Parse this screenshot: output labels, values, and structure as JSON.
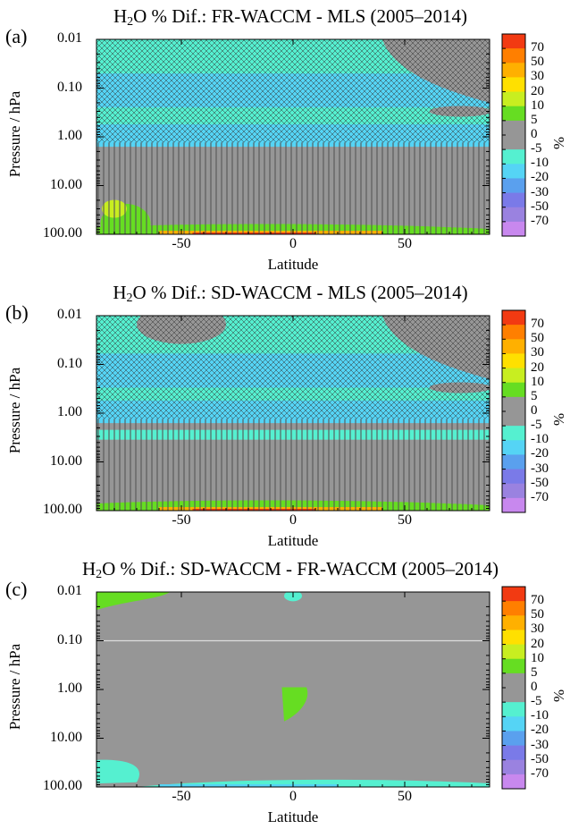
{
  "chart_data": [
    {
      "type": "heatmap",
      "panel_label": "(a)",
      "title_pre": "H",
      "title_sub": "2",
      "title_post": "O % Dif.: FR-WACCM - MLS (2005–2014)",
      "xlabel": "Latitude",
      "ylabel": "Pressure / hPa",
      "y_scale": "log",
      "ylim": [
        100,
        0.01
      ],
      "xlim": [
        -88,
        88
      ],
      "x_ticks": [
        -50,
        0,
        50
      ],
      "y_ticks": [
        "0.01",
        "0.10",
        "1.00",
        "10.00",
        "100.00"
      ],
      "colorbar_levels": [
        "70",
        "50",
        "30",
        "20",
        "10",
        "5",
        "0",
        "-5",
        "-10",
        "-20",
        "-30",
        "-50",
        "-70"
      ],
      "colorbar_unit": "%",
      "hatching": "significance crosses/hatch over most of domain"
    },
    {
      "type": "heatmap",
      "panel_label": "(b)",
      "title_pre": "H",
      "title_sub": "2",
      "title_post": "O % Dif.: SD-WACCM - MLS (2005–2014)",
      "xlabel": "Latitude",
      "ylabel": "Pressure / hPa",
      "y_scale": "log",
      "ylim": [
        100,
        0.01
      ],
      "xlim": [
        -88,
        88
      ],
      "x_ticks": [
        -50,
        0,
        50
      ],
      "y_ticks": [
        "0.01",
        "0.10",
        "1.00",
        "10.00",
        "100.00"
      ],
      "colorbar_levels": [
        "70",
        "50",
        "30",
        "20",
        "10",
        "5",
        "0",
        "-5",
        "-10",
        "-20",
        "-30",
        "-50",
        "-70"
      ],
      "colorbar_unit": "%",
      "hatching": "significance crosses/hatch over most of domain"
    },
    {
      "type": "heatmap",
      "panel_label": "(c)",
      "title_pre": "H",
      "title_sub": "2",
      "title_post": "O % Dif.: SD-WACCM - FR-WACCM (2005–2014)",
      "xlabel": "Latitude",
      "ylabel": "Pressure / hPa",
      "y_scale": "log",
      "ylim": [
        100,
        0.01
      ],
      "xlim": [
        -88,
        88
      ],
      "x_ticks": [
        -50,
        0,
        50
      ],
      "y_ticks": [
        "0.01",
        "0.10",
        "1.00",
        "10.00",
        "100.00"
      ],
      "colorbar_levels": [
        "70",
        "50",
        "30",
        "20",
        "10",
        "5",
        "0",
        "-5",
        "-10",
        "-20",
        "-30",
        "-50",
        "-70"
      ],
      "colorbar_unit": "%",
      "hatching": "none"
    }
  ],
  "colors": {
    "gt70": "#f23a12",
    "50_70": "#ff7f00",
    "30_50": "#ffb000",
    "20_30": "#ffe000",
    "10_20": "#c8ee20",
    "5_10": "#66dd22",
    "0_5": "#969696",
    "m5_0": "#969696",
    "m10_m5": "#55f0d0",
    "m20_m10": "#55d4f5",
    "m30_m20": "#5aa0ee",
    "m50_m30": "#7a7ae8",
    "m70_m50": "#9a82e0",
    "lt_m70": "#c888ee"
  }
}
